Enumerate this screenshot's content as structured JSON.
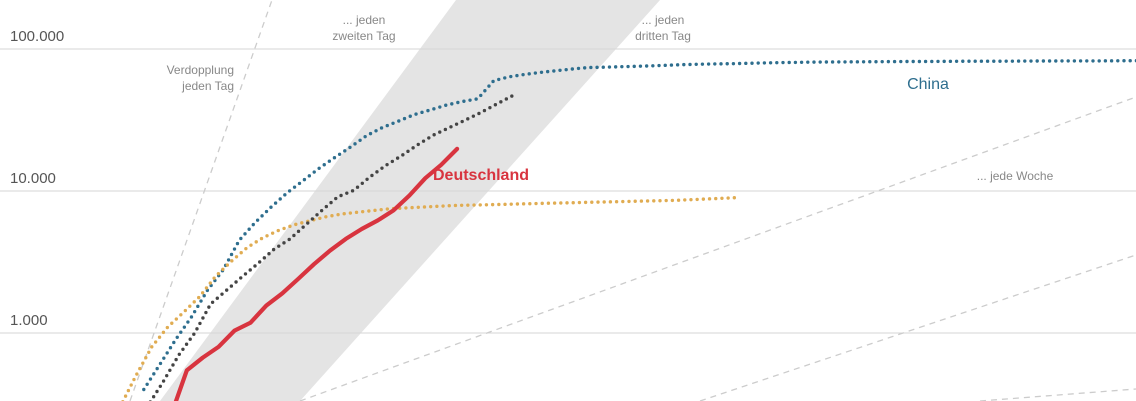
{
  "chart_data": {
    "type": "line",
    "y_scale": "log",
    "ylim": [
      250,
      100000
    ],
    "y_ticks": [
      {
        "value": 1000,
        "label": "1.000"
      },
      {
        "value": 10000,
        "label": "10.000"
      },
      {
        "value": 100000,
        "label": "100.000"
      }
    ],
    "grid": true,
    "legend": "inline labels",
    "reference_lines": [
      {
        "label_lines": [
          "Verdopplung",
          "jeden Tag"
        ]
      },
      {
        "label_lines": [
          "... jeden",
          "zweiten Tag"
        ]
      },
      {
        "label_lines": [
          "... jeden",
          "dritten Tag"
        ]
      },
      {
        "label_lines": [
          "... jede Woche"
        ]
      },
      {
        "label_lines": []
      }
    ],
    "series": [
      {
        "name": "China",
        "color": "#2e6e8e",
        "style": "dotted",
        "values": [
          400,
          600,
          900,
          1300,
          2000,
          2800,
          4500,
          6000,
          7700,
          9700,
          11800,
          14400,
          17200,
          20400,
          24500,
          28000,
          31000,
          34500,
          37200,
          40200,
          42600,
          44600,
          59800,
          63800,
          66400,
          68500,
          70500,
          72400,
          74100,
          74500,
          75000,
          75500,
          76200,
          76900,
          77700,
          78100,
          78500,
          78800,
          79300,
          79800,
          80200,
          80500,
          80900,
          81000,
          81100,
          81300,
          81400,
          81500,
          81600,
          81700,
          81800,
          81900,
          82000,
          82000,
          82100,
          82200,
          82300,
          82300,
          82400,
          82500,
          82500,
          82600,
          82700,
          82700,
          82800
        ]
      },
      {
        "name": "",
        "color": "#e0ac52",
        "style": "dotted",
        "values": [
          300,
          500,
          800,
          1100,
          1400,
          1800,
          2500,
          3200,
          4000,
          4700,
          5300,
          5800,
          6200,
          6600,
          6900,
          7100,
          7300,
          7500,
          7600,
          7700,
          7800,
          7900,
          7950,
          8000,
          8050,
          8100,
          8150,
          8200,
          8250,
          8300,
          8350,
          8400,
          8450,
          8500,
          8550,
          8600,
          8700,
          8800,
          8900,
          9000
        ]
      },
      {
        "name": "",
        "color": "#444444",
        "style": "dotted",
        "values": [
          300,
          450,
          700,
          1000,
          1600,
          2000,
          2500,
          3100,
          3900,
          4600,
          5800,
          7300,
          9100,
          10100,
          12500,
          15100,
          17700,
          21100,
          24700,
          27900,
          31500,
          35700,
          41000,
          47000
        ]
      },
      {
        "name": "Deutschland",
        "color": "#d8343f",
        "style": "solid",
        "values": [
          262,
          545,
          670,
          800,
          1040,
          1180,
          1560,
          1900,
          2400,
          3050,
          3800,
          4600,
          5400,
          6200,
          7300,
          9300,
          12300,
          15300,
          19800
        ]
      }
    ]
  }
}
